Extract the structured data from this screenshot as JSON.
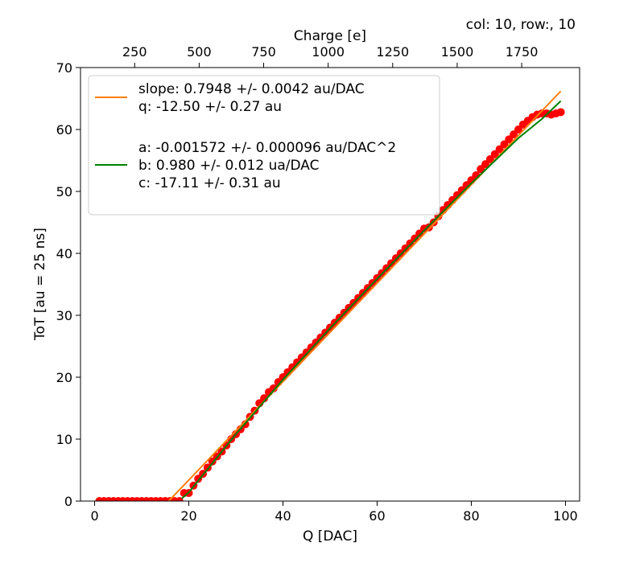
{
  "chart_data": {
    "type": "scatter",
    "title": "col: 10, row:, 10",
    "xlabel": "Q [DAC]",
    "ylabel": "ToT [au = 25 ns]",
    "xlim": [
      -3,
      103
    ],
    "ylim": [
      0,
      70
    ],
    "xticks": [
      0,
      20,
      40,
      60,
      80,
      100
    ],
    "yticks": [
      0,
      10,
      20,
      30,
      40,
      50,
      60,
      70
    ],
    "grid": false,
    "secondary_x_axis": {
      "label": "Charge [e]",
      "position": "top",
      "ticks": [
        250,
        500,
        750,
        1000,
        1250,
        1500,
        1750
      ],
      "tick_dac_positions": [
        8.5,
        22.2,
        35.9,
        49.6,
        63.3,
        77.0,
        90.7
      ]
    },
    "legend": {
      "placement": "upper-left",
      "entries": [
        {
          "color": "#ff7f0e",
          "lines": [
            "slope: 0.7948 +/- 0.0042 au/DAC",
            "q: -12.50 +/- 0.27 au"
          ]
        },
        {
          "color": "#008000",
          "lines": [
            "a: -0.001572 +/- 0.000096 au/DAC^2",
            "b: 0.980 +/- 0.012 ua/DAC",
            "c: -17.11 +/- 0.31 au"
          ]
        }
      ]
    },
    "series": [
      {
        "type": "scatter",
        "color": "#ff0000",
        "x": [
          1,
          2,
          3,
          4,
          5,
          6,
          7,
          8,
          9,
          10,
          11,
          12,
          13,
          14,
          15,
          16,
          17,
          18,
          19,
          20,
          21,
          22,
          23,
          24,
          25,
          26,
          27,
          28,
          29,
          30,
          31,
          32,
          33,
          34,
          35,
          36,
          37,
          38,
          39,
          40,
          41,
          42,
          43,
          44,
          45,
          46,
          47,
          48,
          49,
          50,
          51,
          52,
          53,
          54,
          55,
          56,
          57,
          58,
          59,
          60,
          61,
          62,
          63,
          64,
          65,
          66,
          67,
          68,
          69,
          70,
          71,
          72,
          73,
          74,
          75,
          76,
          77,
          78,
          79,
          80,
          81,
          82,
          83,
          84,
          85,
          86,
          87,
          88,
          89,
          90,
          91,
          92,
          93,
          94,
          95,
          96,
          97,
          98,
          99
        ],
        "y": [
          0,
          0,
          0,
          0,
          0,
          0,
          0,
          0,
          0,
          0,
          0,
          0,
          0,
          0,
          0,
          0,
          0,
          0,
          1.3,
          1.3,
          2.5,
          3.6,
          4.4,
          5.4,
          6.4,
          7.2,
          8.0,
          9.0,
          10.0,
          10.8,
          11.6,
          12.4,
          13.6,
          14.6,
          15.8,
          16.6,
          17.6,
          18.2,
          19.2,
          20.0,
          20.8,
          21.6,
          22.4,
          23.2,
          24.0,
          24.8,
          25.6,
          26.4,
          27.2,
          28.0,
          28.8,
          29.6,
          30.4,
          31.2,
          32.0,
          32.8,
          33.6,
          34.4,
          35.2,
          36.0,
          36.8,
          37.6,
          38.4,
          39.2,
          40.0,
          40.8,
          41.6,
          42.4,
          43.2,
          44.0,
          44.2,
          45.0,
          46.0,
          47.0,
          47.8,
          48.6,
          49.4,
          50.2,
          51.0,
          51.8,
          52.6,
          53.6,
          54.4,
          55.2,
          56.0,
          56.8,
          57.6,
          58.4,
          59.2,
          60.0,
          60.8,
          61.4,
          62.0,
          62.4,
          62.6,
          62.6,
          62.4,
          62.6,
          62.8
        ]
      },
      {
        "type": "line",
        "color": "#ff7f0e",
        "x": [
          15.73,
          99
        ],
        "y": [
          0,
          66.19
        ]
      },
      {
        "type": "line",
        "color": "#008000",
        "x": [
          18.5,
          20,
          30,
          40,
          50,
          60,
          70,
          80,
          90,
          95,
          99
        ],
        "y": [
          0.4,
          1.4,
          10.8,
          19.6,
          27.9,
          35.9,
          43.7,
          51.3,
          58.6,
          61.7,
          64.6
        ]
      }
    ]
  }
}
